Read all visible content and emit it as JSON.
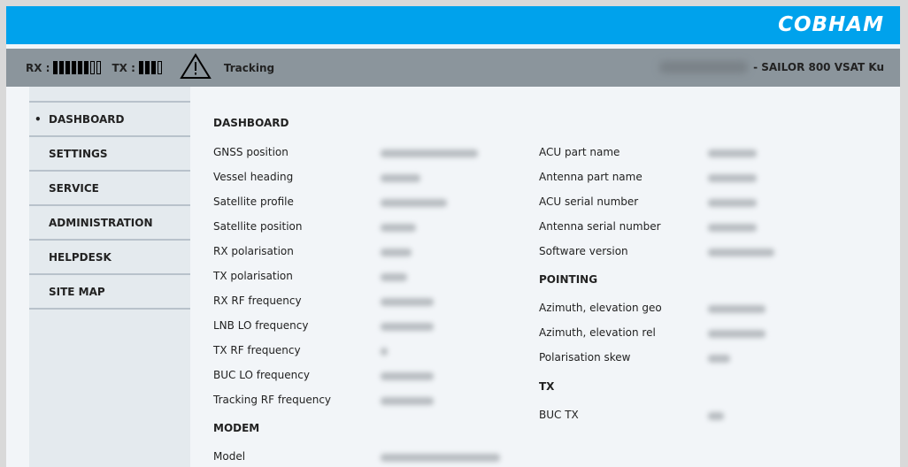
{
  "header": {
    "brand": "COBHAM",
    "brand_color": "#00a2ec"
  },
  "status": {
    "rx_label": "RX :",
    "rx_level": 6,
    "rx_max": 8,
    "tx_label": "TX :",
    "tx_level": 3,
    "tx_max": 4,
    "warning_icon": "warning-triangle-icon",
    "state": "Tracking",
    "device": "- SAILOR 800 VSAT Ku"
  },
  "sidebar": {
    "items": [
      {
        "label": "DASHBOARD",
        "active": true
      },
      {
        "label": "SETTINGS"
      },
      {
        "label": "SERVICE"
      },
      {
        "label": "ADMINISTRATION"
      },
      {
        "label": "HELPDESK"
      },
      {
        "label": "SITE MAP"
      }
    ]
  },
  "left": {
    "dashboard_title": "DASHBOARD",
    "fields": [
      "GNSS position",
      "Vessel heading",
      "Satellite profile",
      "Satellite position",
      "RX polarisation",
      "TX polarisation",
      "RX RF frequency",
      "LNB LO frequency",
      "TX RF frequency",
      "BUC LO frequency",
      "Tracking RF frequency"
    ],
    "modem_title": "MODEM",
    "modem_fields": [
      "Model"
    ]
  },
  "right": {
    "fields": [
      "ACU part name",
      "Antenna part name",
      "ACU serial number",
      "Antenna serial number",
      "Software version"
    ],
    "pointing_title": "POINTING",
    "pointing_fields": [
      "Azimuth, elevation geo",
      "Azimuth, elevation rel",
      "Polarisation skew"
    ],
    "tx_title": "TX",
    "tx_fields": [
      "BUC TX"
    ]
  }
}
